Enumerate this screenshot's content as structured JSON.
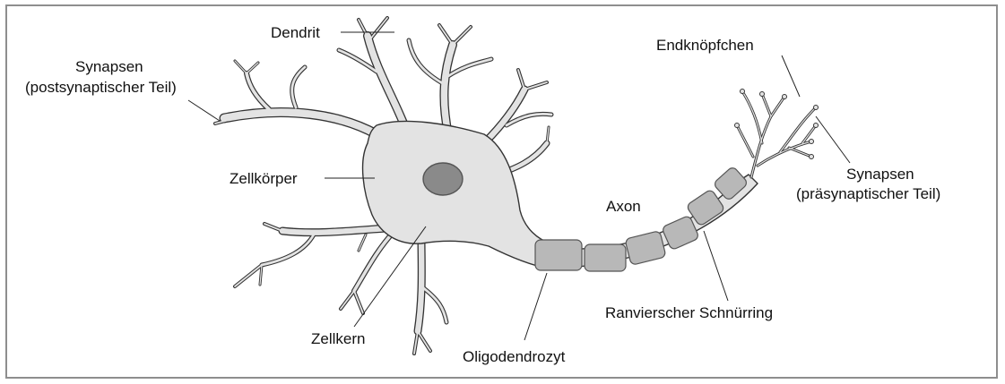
{
  "labels": {
    "dendrit": "Dendrit",
    "synapsen_post_1": "Synapsen",
    "synapsen_post_2": "(postsynaptischer Teil)",
    "zellkoerper": "Zellkörper",
    "zellkern": "Zellkern",
    "oligodendrozyt": "Oligodendrozyt",
    "axon": "Axon",
    "ranvier": "Ranvierscher Schnürring",
    "endknoepfchen": "Endknöpfchen",
    "synapsen_prae_1": "Synapsen",
    "synapsen_prae_2": "(präsynaptischer Teil)"
  },
  "colors": {
    "cell_fill": "#e3e3e3",
    "cell_stroke": "#333333",
    "nucleus": "#8a8a8a",
    "myelin": "#b8b8b8",
    "frame": "#8e8e8e"
  }
}
